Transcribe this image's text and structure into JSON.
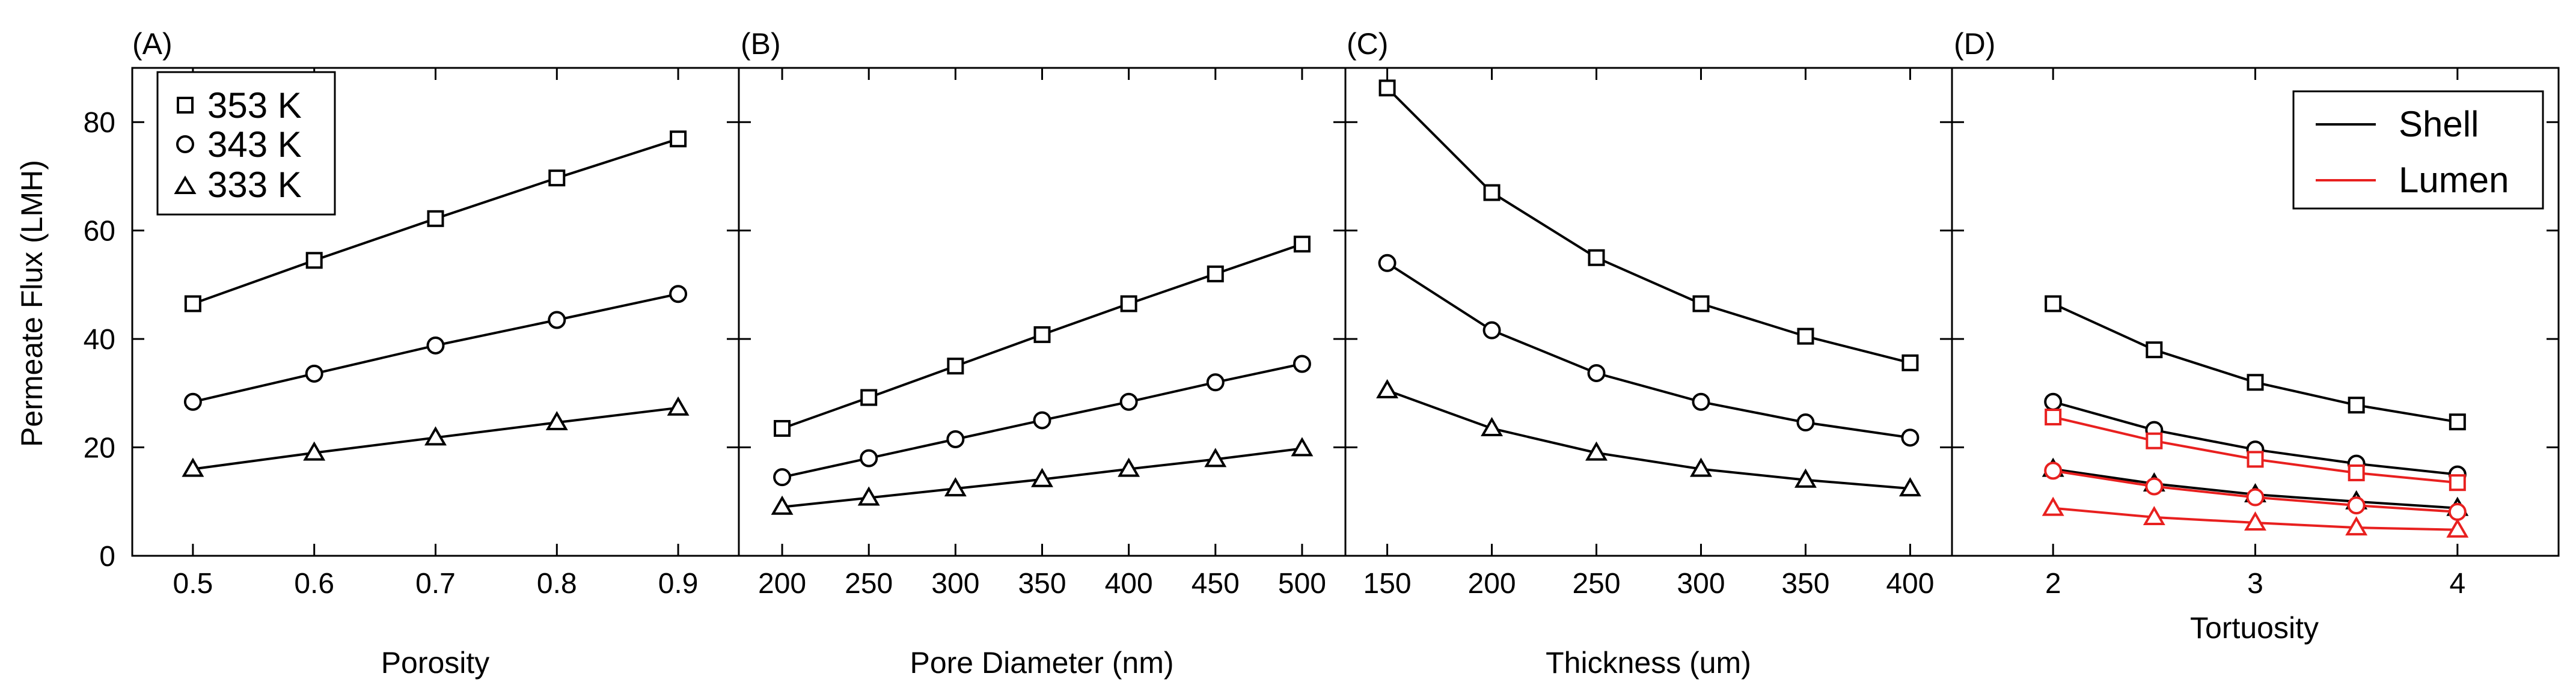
{
  "figure": {
    "ylabel": "Permeate Flux (LMH)",
    "ylim": [
      0,
      90
    ],
    "yticks": [
      0,
      20,
      40,
      60,
      80
    ]
  },
  "legend_temperature": {
    "entries": [
      {
        "label": "353 K",
        "marker": "square"
      },
      {
        "label": "343 K",
        "marker": "circle"
      },
      {
        "label": "333 K",
        "marker": "triangle"
      }
    ]
  },
  "legend_side": {
    "entries": [
      {
        "label": "Shell",
        "color": "#000000"
      },
      {
        "label": "Lumen",
        "color": "#e8201f"
      }
    ]
  },
  "colors": {
    "shell": "#000000",
    "lumen": "#e8201f"
  },
  "chart_data": [
    {
      "type": "line",
      "panel_label": "(A)",
      "xlabel": "Porosity",
      "ylabel": "Permeate Flux (LMH)",
      "xlim": [
        0.45,
        0.95
      ],
      "ylim": [
        0,
        90
      ],
      "xticks": [
        0.5,
        0.6,
        0.7,
        0.8,
        0.9
      ],
      "xtick_labels": [
        "0.5",
        "0.6",
        "0.7",
        "0.8",
        "0.9"
      ],
      "x": [
        0.5,
        0.6,
        0.7,
        0.8,
        0.9
      ],
      "series": [
        {
          "name": "353 K",
          "marker": "square",
          "color": "#000000",
          "values": [
            46.5,
            54.5,
            62.2,
            69.7,
            76.9
          ]
        },
        {
          "name": "343 K",
          "marker": "circle",
          "color": "#000000",
          "values": [
            28.4,
            33.6,
            38.8,
            43.5,
            48.3
          ]
        },
        {
          "name": "333 K",
          "marker": "triangle",
          "color": "#000000",
          "values": [
            16.0,
            19.0,
            21.8,
            24.6,
            27.3
          ]
        }
      ]
    },
    {
      "type": "line",
      "panel_label": "(B)",
      "xlabel": "Pore Diameter (nm)",
      "ylabel": "Permeate Flux (LMH)",
      "xlim": [
        175,
        525
      ],
      "ylim": [
        0,
        90
      ],
      "xticks": [
        200,
        250,
        300,
        350,
        400,
        450,
        500
      ],
      "xtick_labels": [
        "200",
        "250",
        "300",
        "350",
        "400",
        "450",
        "500"
      ],
      "x": [
        200,
        250,
        300,
        350,
        400,
        450,
        500
      ],
      "series": [
        {
          "name": "353 K",
          "marker": "square",
          "color": "#000000",
          "values": [
            23.5,
            29.2,
            35.0,
            40.8,
            46.5,
            52.0,
            57.5
          ]
        },
        {
          "name": "343 K",
          "marker": "circle",
          "color": "#000000",
          "values": [
            14.5,
            18.0,
            21.5,
            25.0,
            28.4,
            32.0,
            35.4
          ]
        },
        {
          "name": "333 K",
          "marker": "triangle",
          "color": "#000000",
          "values": [
            9.0,
            10.7,
            12.4,
            14.1,
            16.0,
            17.8,
            19.8
          ]
        }
      ]
    },
    {
      "type": "line",
      "panel_label": "(C)",
      "xlabel": "Thickness (um)",
      "ylabel": "Permeate Flux (LMH)",
      "xlim": [
        130,
        420
      ],
      "ylim": [
        0,
        90
      ],
      "xticks": [
        150,
        200,
        250,
        300,
        350,
        400
      ],
      "xtick_labels": [
        "150",
        "200",
        "250",
        "300",
        "350",
        "400"
      ],
      "x": [
        150,
        200,
        250,
        300,
        350,
        400
      ],
      "series": [
        {
          "name": "353 K",
          "marker": "square",
          "color": "#000000",
          "values": [
            86.3,
            67.0,
            55.0,
            46.5,
            40.5,
            35.6
          ]
        },
        {
          "name": "343 K",
          "marker": "circle",
          "color": "#000000",
          "values": [
            54.0,
            41.6,
            33.7,
            28.4,
            24.6,
            21.8
          ]
        },
        {
          "name": "333 K",
          "marker": "triangle",
          "color": "#000000",
          "values": [
            30.5,
            23.5,
            19.0,
            16.0,
            14.0,
            12.4
          ]
        }
      ]
    },
    {
      "type": "line",
      "panel_label": "(D)",
      "xlabel": "Tortuosity",
      "ylabel": "Permeate Flux (LMH)",
      "xlim": [
        1.5,
        4.5
      ],
      "ylim": [
        0,
        90
      ],
      "xticks": [
        2,
        3,
        4
      ],
      "xtick_labels": [
        "2",
        "3",
        "4"
      ],
      "x": [
        2,
        2.5,
        3,
        3.5,
        4
      ],
      "series": [
        {
          "name": "Shell 353 K",
          "marker": "square",
          "color": "#000000",
          "values": [
            46.5,
            38.0,
            32.0,
            27.8,
            24.7
          ]
        },
        {
          "name": "Shell 343 K",
          "marker": "circle",
          "color": "#000000",
          "values": [
            28.4,
            23.2,
            19.6,
            17.0,
            15.0
          ]
        },
        {
          "name": "Shell 333 K",
          "marker": "triangle",
          "color": "#000000",
          "values": [
            16.0,
            13.3,
            11.3,
            10.0,
            8.8
          ]
        },
        {
          "name": "Lumen 353 K",
          "marker": "square",
          "color": "#e8201f",
          "values": [
            25.6,
            21.2,
            17.8,
            15.3,
            13.5
          ]
        },
        {
          "name": "Lumen 343 K",
          "marker": "circle",
          "color": "#e8201f",
          "values": [
            15.7,
            12.8,
            10.8,
            9.3,
            8.1
          ]
        },
        {
          "name": "Lumen 333 K",
          "marker": "triangle",
          "color": "#e8201f",
          "values": [
            8.8,
            7.1,
            6.1,
            5.2,
            4.8
          ]
        }
      ]
    }
  ]
}
